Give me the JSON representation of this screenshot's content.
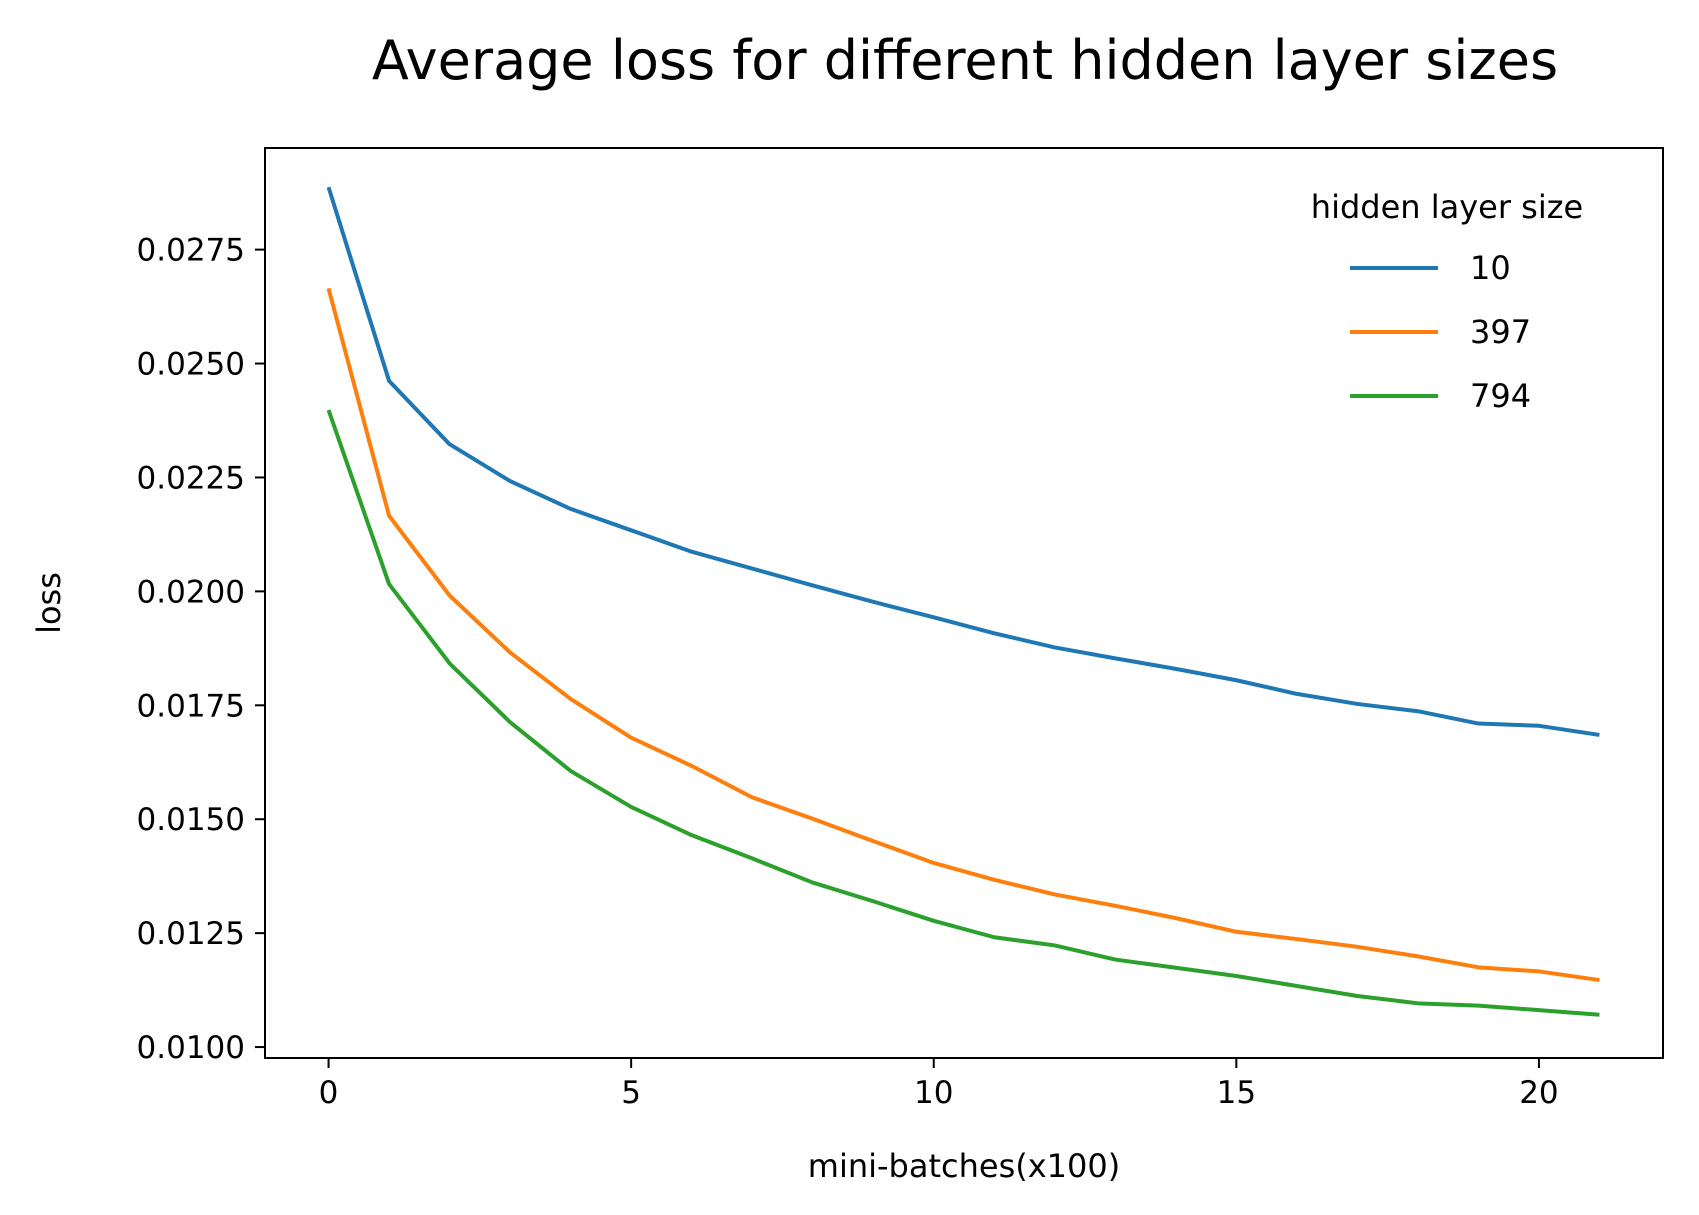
{
  "chart_data": {
    "type": "line",
    "title": "Average loss for different hidden layer sizes",
    "xlabel": "mini-batches(x100)",
    "ylabel": "loss",
    "xlim": [
      -1.05,
      22.05
    ],
    "ylim": [
      0.00976,
      0.02973
    ],
    "xticks": [
      0,
      5,
      10,
      15,
      20
    ],
    "xtick_labels": [
      "0",
      "5",
      "10",
      "15",
      "20"
    ],
    "yticks": [
      0.01,
      0.0125,
      0.015,
      0.0175,
      0.02,
      0.0225,
      0.025,
      0.0275
    ],
    "ytick_labels": [
      "0.0100",
      "0.0125",
      "0.0150",
      "0.0175",
      "0.0200",
      "0.0225",
      "0.0250",
      "0.0275"
    ],
    "grid": false,
    "legend": {
      "title": "hidden layer size",
      "position": "top-right",
      "frame": false
    },
    "x": [
      0,
      1,
      2,
      3,
      4,
      5,
      6,
      7,
      8,
      9,
      10,
      11,
      12,
      13,
      14,
      15,
      16,
      17,
      18,
      19,
      20,
      21
    ],
    "series": [
      {
        "name": "10",
        "color": "#1f77b4",
        "values": [
          0.02887,
          0.02462,
          0.02323,
          0.02242,
          0.02181,
          0.02134,
          0.02087,
          0.0205,
          0.02013,
          0.01977,
          0.01943,
          0.01908,
          0.01877,
          0.01853,
          0.0183,
          0.01805,
          0.01775,
          0.01753,
          0.01737,
          0.0171,
          0.01705,
          0.01685
        ]
      },
      {
        "name": "397",
        "color": "#ff7f0e",
        "values": [
          0.02665,
          0.02166,
          0.01991,
          0.01866,
          0.01764,
          0.01679,
          0.01617,
          0.01548,
          0.01501,
          0.01452,
          0.01404,
          0.01367,
          0.01335,
          0.0131,
          0.01283,
          0.01253,
          0.01237,
          0.0122,
          0.01199,
          0.01175,
          0.01166,
          0.01147
        ]
      },
      {
        "name": "794",
        "color": "#2ca02c",
        "values": [
          0.02398,
          0.02016,
          0.01842,
          0.01713,
          0.01606,
          0.01527,
          0.01465,
          0.01414,
          0.01361,
          0.0132,
          0.01277,
          0.01241,
          0.01223,
          0.01192,
          0.01174,
          0.01156,
          0.01134,
          0.01112,
          0.01096,
          0.01091,
          0.01081,
          0.01071
        ]
      }
    ]
  }
}
